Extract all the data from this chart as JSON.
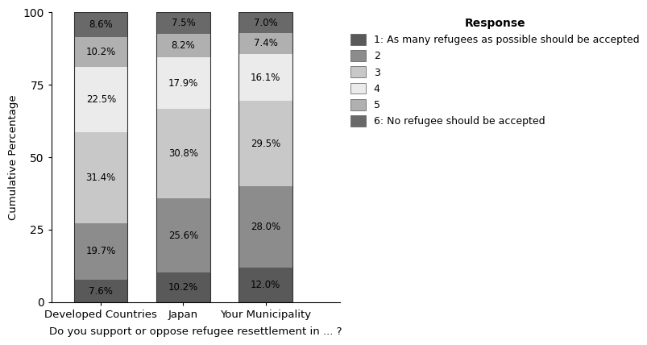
{
  "categories": [
    "Developed Countries",
    "Japan",
    "Your Municipality"
  ],
  "response_labels": [
    "1: As many refugees as possible should be accepted",
    "2",
    "3",
    "4",
    "5",
    "6: No refugee should be accepted"
  ],
  "values": {
    "Developed Countries": [
      7.6,
      19.7,
      31.4,
      22.5,
      10.2,
      8.6
    ],
    "Japan": [
      10.2,
      25.6,
      30.8,
      17.9,
      8.2,
      7.5
    ],
    "Your Municipality": [
      12.0,
      28.0,
      29.5,
      16.1,
      7.4,
      7.0
    ]
  },
  "colors": [
    "#595959",
    "#8c8c8c",
    "#c8c8c8",
    "#ebebeb",
    "#b0b0b0",
    "#696969"
  ],
  "bar_width": 0.65,
  "ylabel": "Cumulative Percentage",
  "xlabel": "Do you support or oppose refugee resettlement in ... ?",
  "ylim": [
    0,
    100
  ],
  "yticks": [
    0,
    25,
    50,
    75,
    100
  ],
  "legend_title": "Response",
  "background_color": "#ffffff",
  "bar_edge_color": "#333333",
  "bar_edge_width": 0.6,
  "text_fontsize": 8.5,
  "axis_fontsize": 9.5,
  "legend_fontsize": 9,
  "x_positions": [
    1,
    2,
    3
  ],
  "xlim": [
    0.4,
    3.9
  ]
}
